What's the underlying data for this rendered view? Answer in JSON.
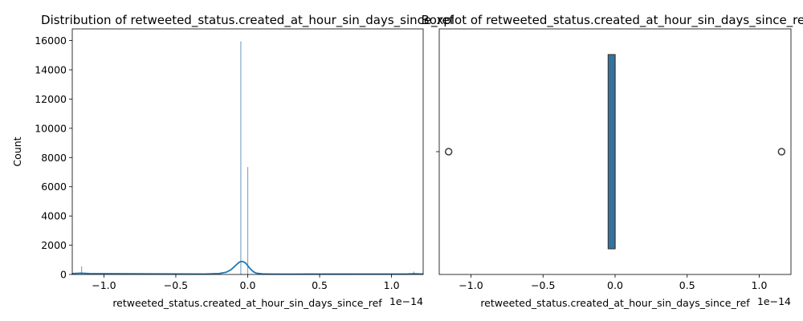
{
  "colors": {
    "hist_bar": "#7fa9cc",
    "kde_line": "#1f77b4",
    "box_fill": "#3274a1",
    "box_edge": "#3d3d3d"
  },
  "chart_data": [
    {
      "type": "bar",
      "title": "Distribution of retweeted_status.created_at_hour_sin_days_since_ref",
      "xlabel": "retweeted_status.created_at_hour_sin_days_since_ref",
      "ylabel": "Count",
      "x_offset_label": "1e−14",
      "xlim": [
        -1.22,
        1.22
      ],
      "ylim": [
        0,
        16800
      ],
      "xticks": [
        -1.0,
        -0.5,
        0.0,
        0.5,
        1.0
      ],
      "xtick_labels": [
        "−1.0",
        "−0.5",
        "0.0",
        "0.5",
        "1.0"
      ],
      "yticks": [
        0,
        2000,
        4000,
        6000,
        8000,
        10000,
        12000,
        14000,
        16000
      ],
      "ytick_labels": [
        "0",
        "2000",
        "4000",
        "6000",
        "8000",
        "10000",
        "12000",
        "14000",
        "16000"
      ],
      "bars": [
        {
          "x": -1.155,
          "count": 550
        },
        {
          "x": -0.048,
          "count": 15950
        },
        {
          "x": 0.0,
          "count": 7350
        },
        {
          "x": 1.155,
          "count": 200
        }
      ],
      "kde": {
        "x": [
          -1.22,
          -1.16,
          -1.1,
          -0.3,
          -0.2,
          -0.15,
          -0.12,
          -0.1,
          -0.08,
          -0.06,
          -0.05,
          -0.04,
          -0.03,
          -0.02,
          -0.01,
          0.0,
          0.01,
          0.02,
          0.04,
          0.06,
          0.1,
          0.15,
          0.3,
          1.1,
          1.16,
          1.22
        ],
        "y": [
          60,
          90,
          60,
          30,
          60,
          150,
          300,
          470,
          660,
          830,
          880,
          890,
          870,
          820,
          730,
          610,
          480,
          360,
          180,
          90,
          40,
          25,
          20,
          25,
          50,
          30
        ]
      }
    },
    {
      "type": "box",
      "title": "Boxplot of retweeted_status.created_at_hour_sin_days_since_ref",
      "xlabel": "retweeted_status.created_at_hour_sin_days_since_ref",
      "x_offset_label": "1e−14",
      "xlim": [
        -1.22,
        1.22
      ],
      "xticks": [
        -1.0,
        -0.5,
        0.0,
        0.5,
        1.0
      ],
      "xtick_labels": [
        "−1.0",
        "−0.5",
        "0.0",
        "0.5",
        "1.0"
      ],
      "box": {
        "q1": -0.048,
        "median": 0.0,
        "q3": 0.0,
        "whisker_low": -0.048,
        "whisker_high": 0.0
      },
      "outliers": [
        -1.155,
        1.155
      ]
    }
  ]
}
